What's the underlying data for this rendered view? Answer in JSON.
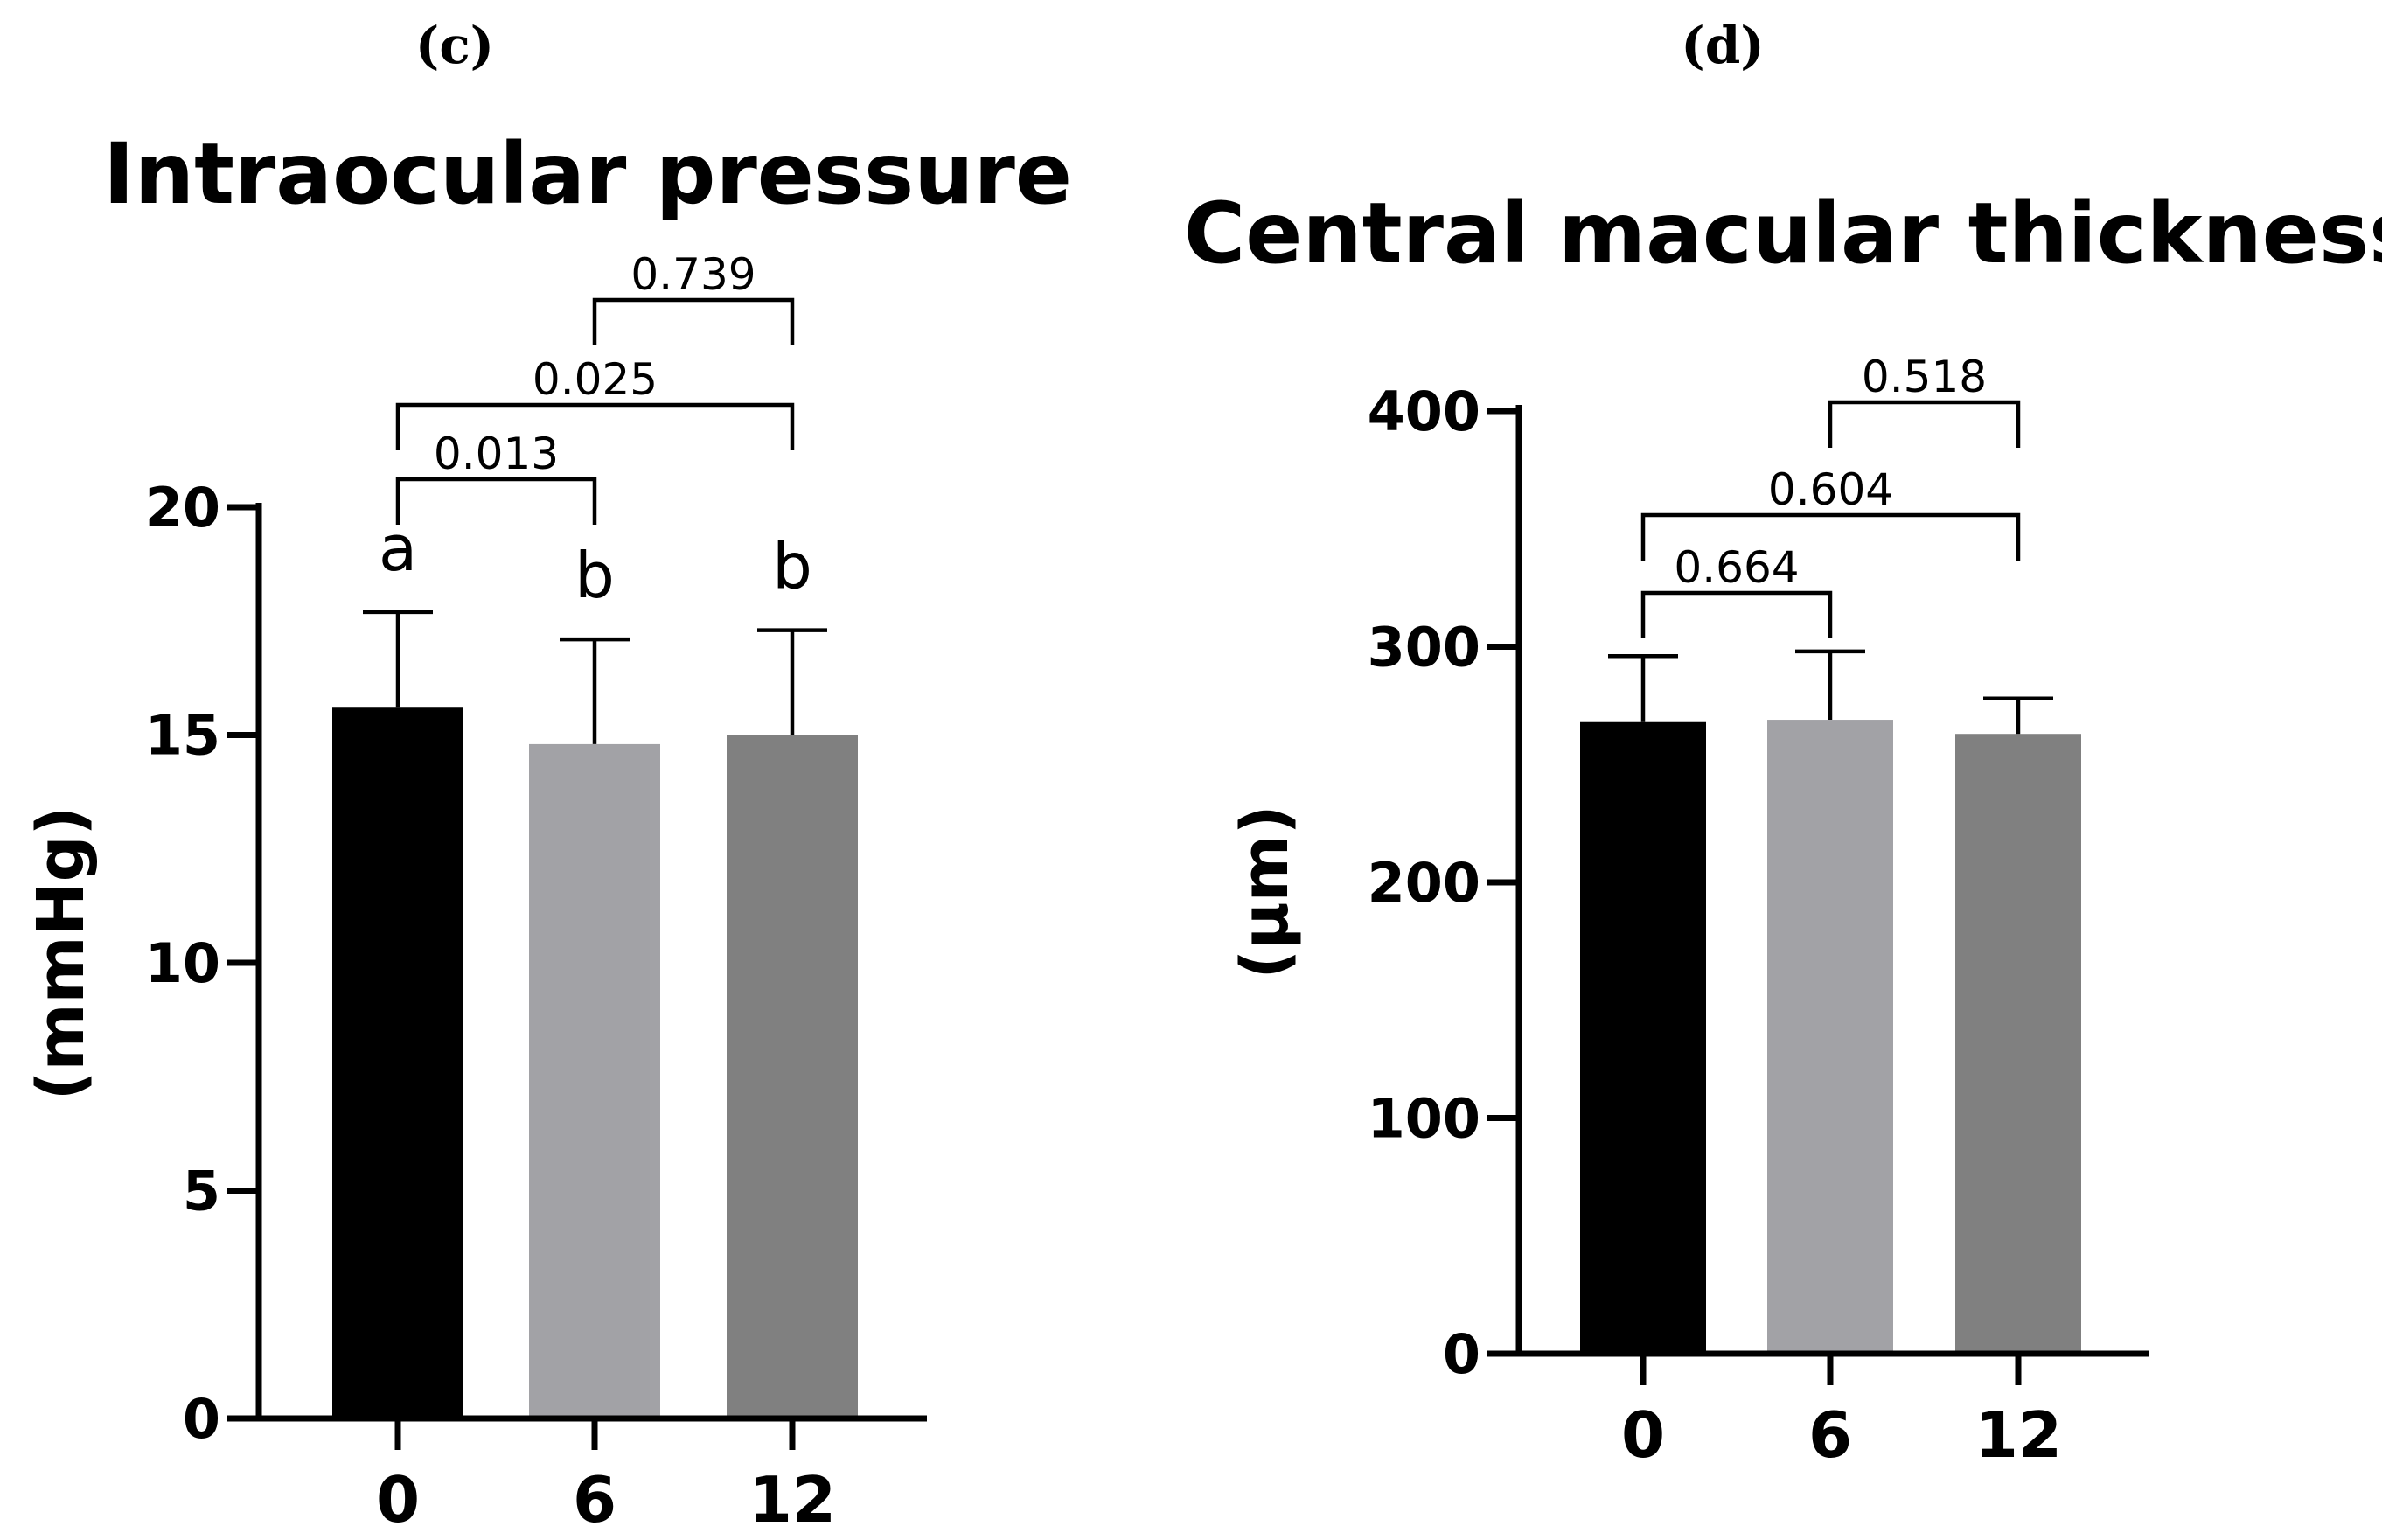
{
  "chart_data": [
    {
      "panel": "(c)",
      "type": "bar",
      "title": "Intraocular pressure",
      "ylabel": "(mmHg)",
      "xlabel": "",
      "categories": [
        "0",
        "6",
        "12"
      ],
      "values": [
        15.6,
        14.8,
        15.0
      ],
      "errors": [
        2.1,
        2.3,
        2.3
      ],
      "colors": [
        "#000000",
        "#a2a2a6",
        "#808080"
      ],
      "ylim": [
        0,
        20
      ],
      "yticks": [
        0,
        5,
        10,
        15,
        20
      ],
      "letters": [
        "a",
        "b",
        "b"
      ],
      "comparisons": [
        {
          "from": 0,
          "to": 1,
          "label": "0.013"
        },
        {
          "from": 0,
          "to": 2,
          "label": "0.025"
        },
        {
          "from": 1,
          "to": 2,
          "label": "0.739"
        }
      ]
    },
    {
      "panel": "(d)",
      "type": "bar",
      "title": "Central macular thickness",
      "ylabel": "(µm)",
      "xlabel": "",
      "categories": [
        "0",
        "6",
        "12"
      ],
      "values": [
        268,
        269,
        263
      ],
      "errors": [
        28,
        29,
        15
      ],
      "colors": [
        "#000000",
        "#a2a2a6",
        "#808080"
      ],
      "ylim": [
        0,
        400
      ],
      "yticks": [
        0,
        100,
        200,
        300,
        400
      ],
      "letters": [
        "",
        "",
        ""
      ],
      "comparisons": [
        {
          "from": 0,
          "to": 1,
          "label": "0.664"
        },
        {
          "from": 0,
          "to": 2,
          "label": "0.604"
        },
        {
          "from": 1,
          "to": 2,
          "label": "0.518"
        }
      ]
    }
  ]
}
